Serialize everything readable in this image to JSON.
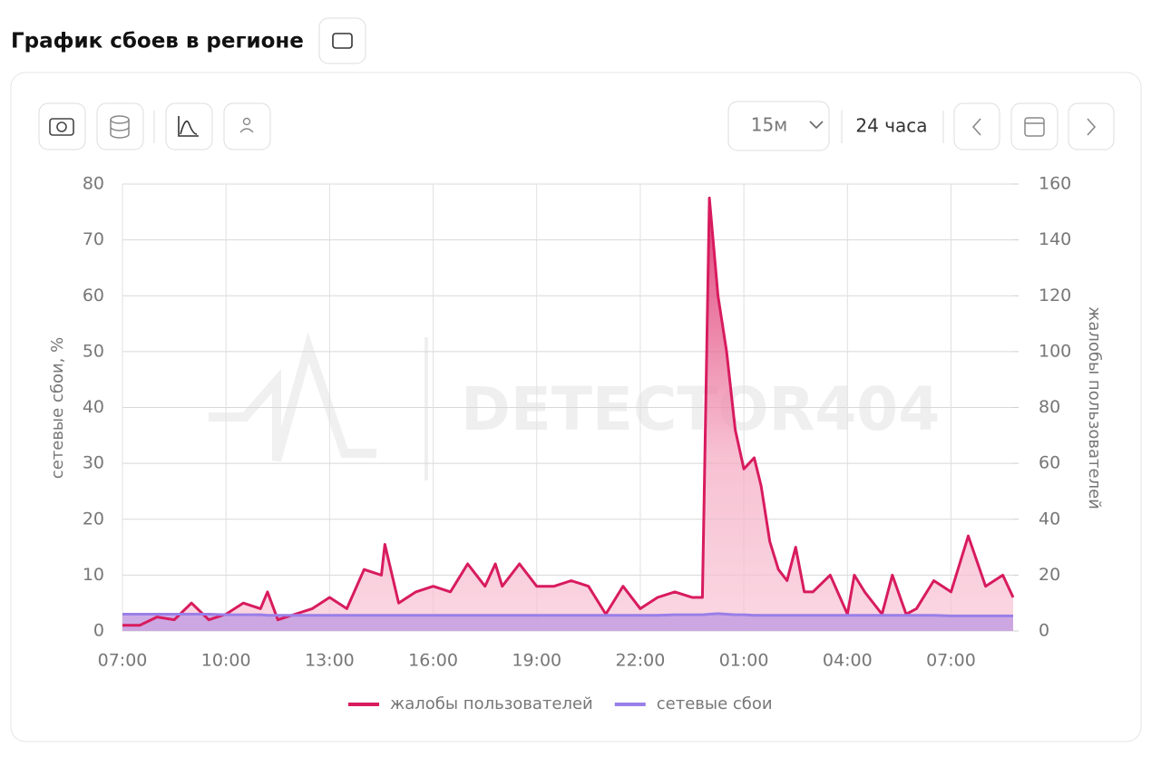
{
  "header": {
    "title": "График сбоев в регионе"
  },
  "toolbar": {
    "interval": "15м",
    "range": "24 часа"
  },
  "chart_data": {
    "type": "line",
    "watermark": "DETECTOR404",
    "y_label": "сетевые сбои, %",
    "y2_label": "жалобы пользователей",
    "x": [
      0,
      0.5,
      1,
      1.5,
      2,
      2.5,
      3,
      3.5,
      4,
      4.2,
      4.5,
      5,
      5.5,
      6,
      6.5,
      7,
      7.5,
      7.6,
      8,
      8.5,
      9,
      9.5,
      10,
      10.5,
      10.8,
      11,
      11.5,
      12,
      12.5,
      13,
      13.5,
      14,
      14.5,
      15,
      15.5,
      16,
      16.5,
      16.8,
      17,
      17.25,
      17.5,
      17.75,
      18,
      18.3,
      18.5,
      18.75,
      19,
      19.25,
      19.5,
      19.75,
      20,
      20.5,
      21,
      21.2,
      21.5,
      22,
      22.3,
      22.7,
      23,
      23.5,
      24,
      24.5,
      25,
      25.5,
      25.8
    ],
    "series": [
      {
        "name": "жалобы пользователей",
        "color": "#d81b5e",
        "fill": "#f4a7c0",
        "axis": "y2",
        "values": [
          2,
          2,
          5,
          4,
          10,
          4,
          6,
          10,
          8,
          14,
          4,
          6,
          8,
          12,
          8,
          22,
          20,
          31,
          10,
          14,
          16,
          14,
          24,
          16,
          24,
          16,
          24,
          16,
          16,
          18,
          16,
          6,
          16,
          8,
          12,
          14,
          12,
          12,
          155,
          120,
          100,
          72,
          58,
          62,
          52,
          32,
          22,
          18,
          30,
          14,
          14,
          20,
          6,
          20,
          14,
          6,
          20,
          6,
          8,
          18,
          14,
          34,
          16,
          20,
          12
        ]
      },
      {
        "name": "сетевые сбои",
        "color": "#9a7fe8",
        "fill": "#c49fe2",
        "axis": "y",
        "values": [
          3,
          3,
          3,
          3,
          3,
          3,
          2.9,
          2.9,
          2.9,
          2.8,
          2.8,
          2.8,
          2.8,
          2.8,
          2.8,
          2.8,
          2.8,
          2.8,
          2.8,
          2.8,
          2.8,
          2.8,
          2.8,
          2.8,
          2.8,
          2.8,
          2.8,
          2.8,
          2.8,
          2.8,
          2.8,
          2.8,
          2.8,
          2.8,
          2.8,
          2.9,
          2.9,
          2.9,
          3,
          3.1,
          3,
          2.9,
          2.9,
          2.8,
          2.8,
          2.8,
          2.8,
          2.8,
          2.8,
          2.8,
          2.8,
          2.8,
          2.8,
          2.8,
          2.8,
          2.8,
          2.8,
          2.8,
          2.8,
          2.8,
          2.7,
          2.7,
          2.7,
          2.7,
          2.7
        ]
      }
    ],
    "xlim": [
      0,
      25.8
    ],
    "xticks": [
      {
        "value": 0,
        "label": "07:00"
      },
      {
        "value": 3,
        "label": "10:00"
      },
      {
        "value": 6,
        "label": "13:00"
      },
      {
        "value": 9,
        "label": "16:00"
      },
      {
        "value": 12,
        "label": "19:00"
      },
      {
        "value": 15,
        "label": "22:00"
      },
      {
        "value": 18,
        "label": "01:00"
      },
      {
        "value": 21,
        "label": "04:00"
      },
      {
        "value": 24,
        "label": "07:00"
      }
    ],
    "ylim": [
      0,
      80
    ],
    "yticks": [
      0,
      10,
      20,
      30,
      40,
      50,
      60,
      70,
      80
    ],
    "y2lim": [
      0,
      160
    ],
    "y2ticks": [
      0,
      20,
      40,
      60,
      80,
      100,
      120,
      140,
      160
    ],
    "grid": true,
    "legend": "bottom"
  }
}
